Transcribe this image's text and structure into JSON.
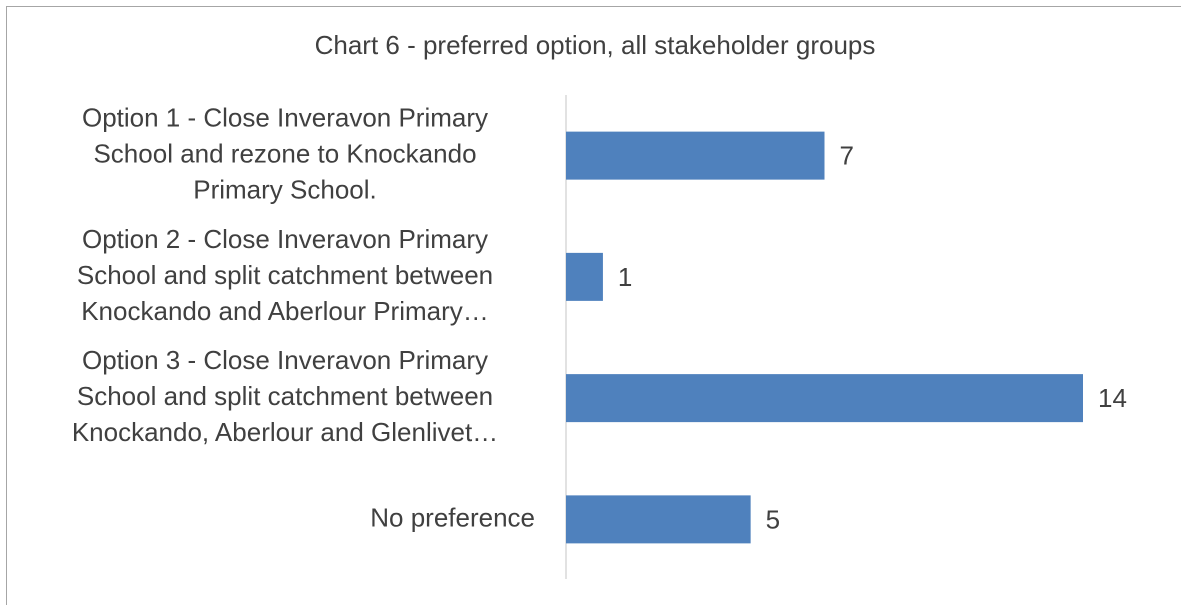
{
  "chart_data": {
    "type": "bar",
    "orientation": "horizontal",
    "title": "Chart 6 - preferred option, all stakeholder groups",
    "categories": [
      [
        "Option 1 - Close Inveravon Primary",
        "School and rezone to Knockando",
        "Primary School."
      ],
      [
        "Option 2 - Close Inveravon Primary",
        "School and split catchment between",
        "Knockando and Aberlour Primary…"
      ],
      [
        "Option 3 - Close Inveravon Primary",
        "School and split catchment between",
        "Knockando, Aberlour and Glenlivet…"
      ],
      [
        "No preference"
      ]
    ],
    "values": [
      7,
      1,
      14,
      5
    ],
    "color": "#4f81bd"
  }
}
